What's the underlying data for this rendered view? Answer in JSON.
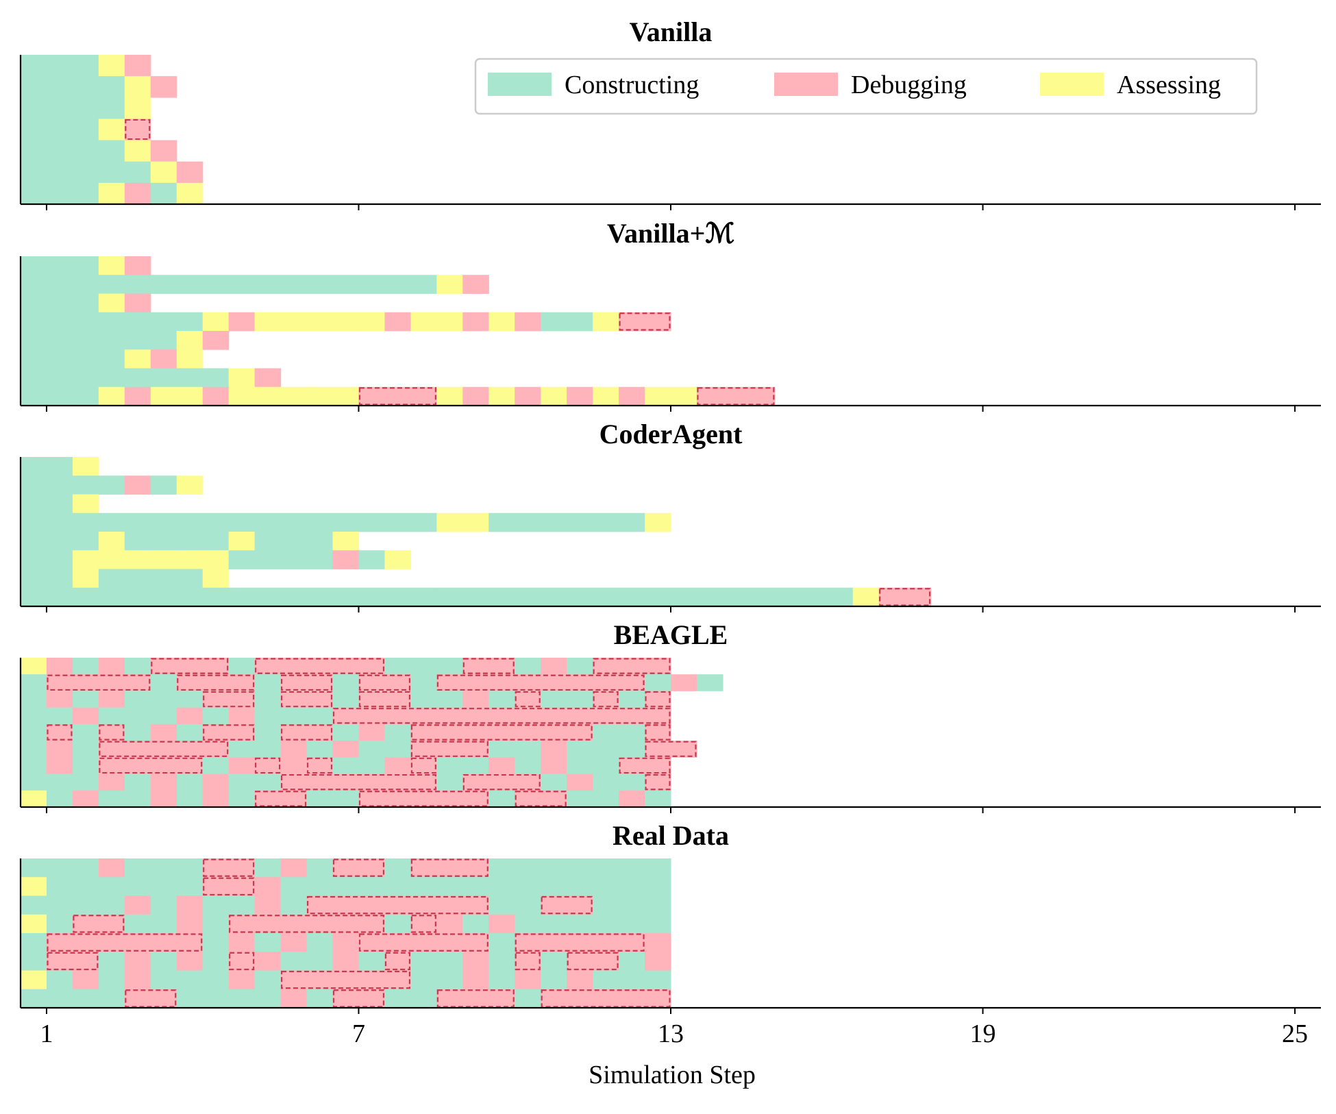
{
  "chart_data": {
    "type": "timeline",
    "xlabel": "Simulation Step",
    "xlim": [
      0.5,
      25.5
    ],
    "xticks": [
      1,
      7,
      13,
      19,
      25
    ],
    "colors": {
      "C": "#a8e6cf",
      "D": "#ffb3ba",
      "A": "#fcfc8f",
      "outline": "#c8384f"
    },
    "legend": {
      "position": "top-right",
      "entries": [
        {
          "key": "C",
          "label": "Constructing"
        },
        {
          "key": "D",
          "label": "Debugging"
        },
        {
          "key": "A",
          "label": "Assessing"
        }
      ]
    },
    "panels": [
      {
        "title": "Vanilla",
        "rows": [
          "CCCAD",
          "CCCCAD",
          "CCCCA",
          "CCCAd",
          "CCCCAD",
          "CCCCCAD",
          "CCCADCA"
        ]
      },
      {
        "title": "Vanilla+ℳ",
        "rows": [
          "CCCAD",
          "CCCCCCCCCCCCCCCCAD",
          "CCCAD",
          "CCCCCCCADAAAAADAADADCCAdd",
          "CCCCCCAD",
          "CCCCADA",
          "CCCCCCCCAD",
          "CCCADAADAAAAAdddADADADADAAddd"
        ]
      },
      {
        "title": "CoderAgent",
        "rows": [
          "CCA",
          "CCCCDCA",
          "CCA",
          "CCCCCCCCCCCCCCCCAACCCCCCA",
          "CCCACCCCACCCA",
          "CCAAAAAACCCCDCA",
          "CCACCCCA",
          "CCCCCCCCCCCCCCCCCCCCCCCCCCCCCCCCAdd"
        ]
      },
      {
        "title": "BEAGLE",
        "rows": [
          "ADCDCdddCdddddCCCddCDCddd",
          "CddddCdddCddCddCddddddddCDC",
          "CDCDCCCddCddCddCCDCdCCdCd",
          "CCDCCCDCDCCCddddddddddddd",
          "CdCdCDCddCddCDCdddddddCCd",
          "CDCdddddCCDCDCCdddCCDCCCdd",
          "CDCddddCDdDdCCDdCCDCDCCdd",
          "CCCDCDCDCCddddddCdddCDCCd",
          "ACDCCDCDCddCCdddddCddCCDC"
        ]
      },
      {
        "title": "Real Data",
        "rows": [
          "CCCDCCCddCDCddCdddCCCCCCC",
          "ACCCCCCddDCCCCCCCCCCCCCCC",
          "CCCCDCDCCDCdddddddCCddCCC",
          "ACddCCDCddddddCdDCDCCCCCC",
          "CddddddCDCDCDdddddCdddddD",
          "CddCDCDCdDCCDCdCCDCdCddCD",
          "ACDCDCCCDCdddddCCDCDCDCCC",
          "CCCCddCCCCDCddCCdddCddddd"
        ]
      }
    ]
  }
}
